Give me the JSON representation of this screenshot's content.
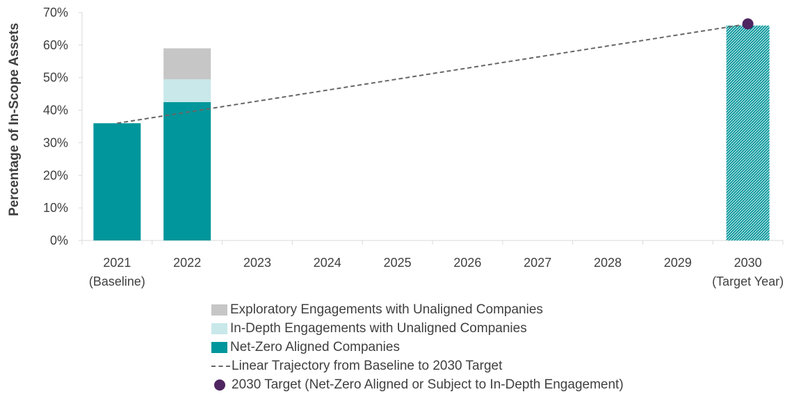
{
  "chart_data": {
    "type": "bar",
    "ylabel": "Percentage of In-Scope Assets",
    "ylim": [
      0,
      70
    ],
    "yticks": [
      "0%",
      "10%",
      "20%",
      "30%",
      "40%",
      "50%",
      "60%",
      "70%"
    ],
    "categories": [
      {
        "year": "2021",
        "sub": "(Baseline)"
      },
      {
        "year": "2022",
        "sub": ""
      },
      {
        "year": "2023",
        "sub": ""
      },
      {
        "year": "2024",
        "sub": ""
      },
      {
        "year": "2025",
        "sub": ""
      },
      {
        "year": "2026",
        "sub": ""
      },
      {
        "year": "2027",
        "sub": ""
      },
      {
        "year": "2028",
        "sub": ""
      },
      {
        "year": "2029",
        "sub": ""
      },
      {
        "year": "2030",
        "sub": "(Target Year)"
      }
    ],
    "series": [
      {
        "name": "Net-Zero Aligned Companies",
        "color": "#00969b",
        "values": [
          36,
          42.5,
          null,
          null,
          null,
          null,
          null,
          null,
          null,
          null
        ]
      },
      {
        "name": "In-Depth Engagements with Unaligned Companies",
        "color": "#c8e8ea",
        "values": [
          0,
          7,
          null,
          null,
          null,
          null,
          null,
          null,
          null,
          null
        ]
      },
      {
        "name": "Exploratory Engagements with Unaligned Companies",
        "color": "#c6c6c6",
        "values": [
          0,
          9.5,
          null,
          null,
          null,
          null,
          null,
          null,
          null,
          null
        ]
      }
    ],
    "target_bar": {
      "category": "2030",
      "value": 66,
      "color": "#00969b",
      "pattern": "hatched"
    },
    "trajectory": {
      "name": "Linear Trajectory from Baseline to 2030 Target",
      "from": {
        "x": "2021",
        "y": 36
      },
      "to": {
        "x": "2030",
        "y": 66.5
      },
      "color": "#666666"
    },
    "target_point": {
      "name": "2030 Target (Net-Zero Aligned or Subject to In-Depth Engagement)",
      "x": "2030",
      "y": 66.5,
      "color": "#4f2660"
    },
    "grid": false,
    "legend_position": "bottom"
  },
  "legend": [
    {
      "label": "Exploratory Engagements with Unaligned Companies",
      "kind": "swatch",
      "color": "#c6c6c6"
    },
    {
      "label": "In-Depth Engagements with Unaligned Companies",
      "kind": "swatch",
      "color": "#c8e8ea"
    },
    {
      "label": "Net-Zero Aligned Companies",
      "kind": "swatch",
      "color": "#00969b"
    },
    {
      "label": "Linear Trajectory from Baseline to 2030 Target",
      "kind": "dash",
      "color": "#666666"
    },
    {
      "label": "2030 Target (Net-Zero Aligned or Subject to In-Depth Engagement)",
      "kind": "dot",
      "color": "#4f2660"
    }
  ]
}
